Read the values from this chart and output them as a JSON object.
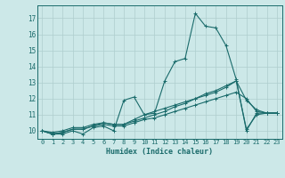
{
  "xlabel": "Humidex (Indice chaleur)",
  "xlim": [
    -0.5,
    23.5
  ],
  "ylim": [
    9.5,
    17.8
  ],
  "yticks": [
    10,
    11,
    12,
    13,
    14,
    15,
    16,
    17
  ],
  "xticks": [
    0,
    1,
    2,
    3,
    4,
    5,
    6,
    7,
    8,
    9,
    10,
    11,
    12,
    13,
    14,
    15,
    16,
    17,
    18,
    19,
    20,
    21,
    22,
    23
  ],
  "bg_color": "#cce8e8",
  "line_color": "#1a6b6b",
  "grid_color": "#aecece",
  "series": [
    [
      10.0,
      9.8,
      9.8,
      10.0,
      9.8,
      10.2,
      10.3,
      10.0,
      11.9,
      12.1,
      11.0,
      11.1,
      13.1,
      14.3,
      14.5,
      17.3,
      16.5,
      16.4,
      15.3,
      13.2,
      10.0,
      11.1,
      11.1,
      11.1
    ],
    [
      10.0,
      9.8,
      9.9,
      10.1,
      10.1,
      10.3,
      10.4,
      10.3,
      10.3,
      10.5,
      10.7,
      10.8,
      11.0,
      11.2,
      11.4,
      11.6,
      11.8,
      12.0,
      12.2,
      12.4,
      12.0,
      11.2,
      11.1,
      11.1
    ],
    [
      10.0,
      9.9,
      10.0,
      10.2,
      10.2,
      10.4,
      10.5,
      10.4,
      10.4,
      10.6,
      10.8,
      11.0,
      11.2,
      11.5,
      11.7,
      12.0,
      12.2,
      12.4,
      12.7,
      13.1,
      10.1,
      11.0,
      11.1,
      11.1
    ],
    [
      10.0,
      9.8,
      9.9,
      10.1,
      10.1,
      10.3,
      10.5,
      10.4,
      10.4,
      10.7,
      11.0,
      11.2,
      11.4,
      11.6,
      11.8,
      12.0,
      12.3,
      12.5,
      12.8,
      13.1,
      11.9,
      11.3,
      11.1,
      11.1
    ]
  ]
}
